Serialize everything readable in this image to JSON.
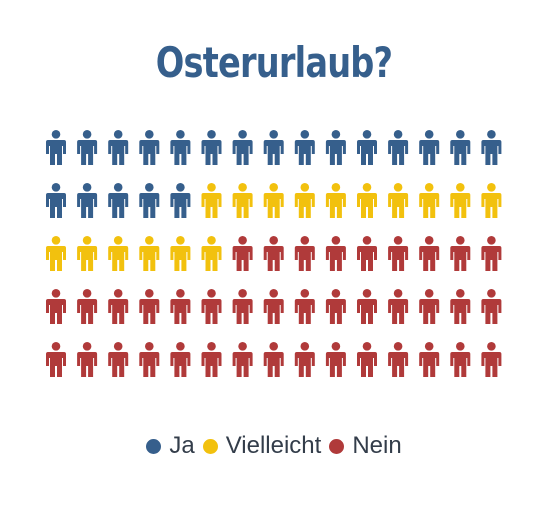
{
  "chart_data": {
    "type": "pictogram",
    "title": "Osterurlaub?",
    "unit_icon": "person-icon",
    "categories": [
      "Ja",
      "Vielleicht",
      "Nein"
    ],
    "values": [
      20,
      16,
      39
    ],
    "colors": [
      "#365f8c",
      "#f2c10e",
      "#b03a3a"
    ],
    "grid": {
      "rows": 5,
      "columns": 15
    },
    "legend": "bottom-center"
  },
  "title_color": "#365f8c"
}
